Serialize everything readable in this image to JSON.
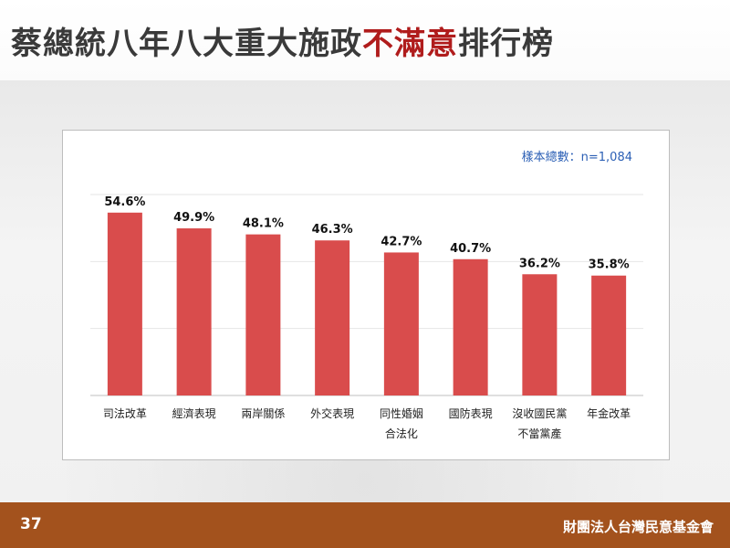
{
  "slide": {
    "title_prefix": "蔡總統八年八大重大施政",
    "title_highlight": "不滿意",
    "title_suffix": "排行榜",
    "page_number": "37",
    "organization": "財團法人台灣民意基金會"
  },
  "colors": {
    "bar": "#d94c4c",
    "title_highlight": "#b01c1c",
    "footer": "#a3521d",
    "sample_note": "#2b5fb5"
  },
  "chart_data": {
    "type": "bar",
    "sample_note": "樣本總數：n=1,084",
    "categories": [
      [
        "司法改革"
      ],
      [
        "經濟表現"
      ],
      [
        "兩岸關係"
      ],
      [
        "外交表現"
      ],
      [
        "同性婚姻",
        "合法化"
      ],
      [
        "國防表現"
      ],
      [
        "沒收國民黨",
        "不當黨產"
      ],
      [
        "年金改革"
      ]
    ],
    "values": [
      54.6,
      49.9,
      48.1,
      46.3,
      42.7,
      40.7,
      36.2,
      35.8
    ],
    "value_labels": [
      "54.6%",
      "49.9%",
      "48.1%",
      "46.3%",
      "42.7%",
      "40.7%",
      "36.2%",
      "35.8%"
    ],
    "ylim": [
      0,
      60
    ],
    "grid": true,
    "legend": "none"
  }
}
